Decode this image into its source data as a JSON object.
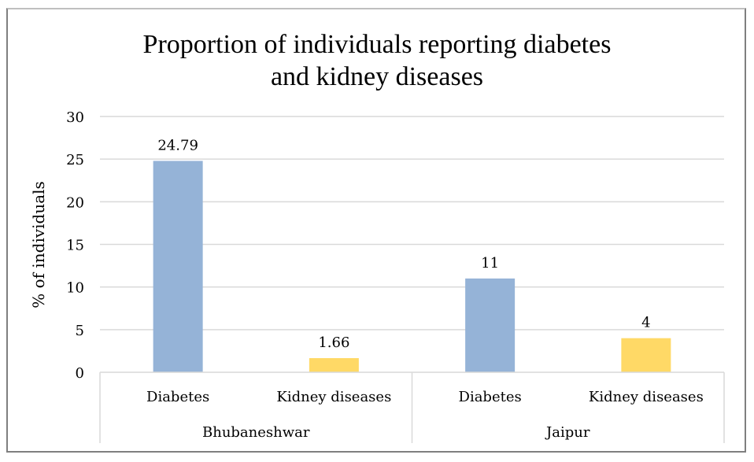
{
  "chart_data": {
    "type": "bar",
    "title_lines": [
      "Proportion of individuals reporting diabetes",
      "and kidney diseases"
    ],
    "title": "Proportion of individuals reporting diabetes and kidney diseases",
    "xlabel": "",
    "ylabel": "% of individuals",
    "ylim": [
      0,
      30
    ],
    "yticks": [
      0,
      5,
      10,
      15,
      20,
      25,
      30
    ],
    "grid": true,
    "legend": "none",
    "groups": [
      {
        "name": "Bhubaneshwar",
        "bars": [
          {
            "category": "Diabetes",
            "value": 24.79,
            "label": "24.79",
            "color": "#95B3D7"
          },
          {
            "category": "Kidney diseases",
            "value": 1.66,
            "label": "1.66",
            "color": "#FFD966"
          }
        ]
      },
      {
        "name": "Jaipur",
        "bars": [
          {
            "category": "Diabetes",
            "value": 11,
            "label": "11",
            "color": "#95B3D7"
          },
          {
            "category": "Kidney diseases",
            "value": 4,
            "label": "4",
            "color": "#FFD966"
          }
        ]
      }
    ]
  }
}
